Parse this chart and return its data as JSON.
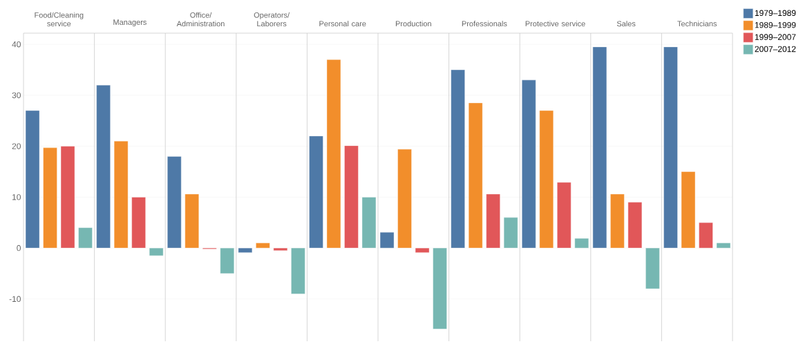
{
  "chart_data": {
    "type": "bar",
    "categories": [
      "Food/Cleaning service",
      "Managers",
      "Office/Administration",
      "Operators/Laborers",
      "Personal care",
      "Production",
      "Professionals",
      "Protective service",
      "Sales",
      "Technicians"
    ],
    "series": [
      {
        "name": "1979–1989",
        "color": "#4e79a7",
        "values": [
          27,
          32,
          18,
          -0.9,
          22,
          3.1,
          35,
          33,
          39.5,
          39.5
        ]
      },
      {
        "name": "1989–1999",
        "color": "#f28e2b",
        "values": [
          19.7,
          21,
          10.6,
          1,
          37,
          19.4,
          28.5,
          27,
          10.6,
          15
        ]
      },
      {
        "name": "1999–2007",
        "color": "#e15759",
        "values": [
          20,
          10,
          -0.2,
          -0.5,
          20.1,
          -0.9,
          10.6,
          12.9,
          9,
          5
        ]
      },
      {
        "name": "2007–2012",
        "color": "#76b7b2",
        "values": [
          4,
          -1.5,
          -5,
          -9,
          10,
          -15.9,
          6,
          1.9,
          -8,
          1
        ]
      }
    ],
    "ylim": [
      -18.3,
      42.2
    ],
    "yticks": [
      -10,
      0,
      10,
      20,
      30,
      40
    ],
    "grid": "y",
    "legend": "top right"
  }
}
